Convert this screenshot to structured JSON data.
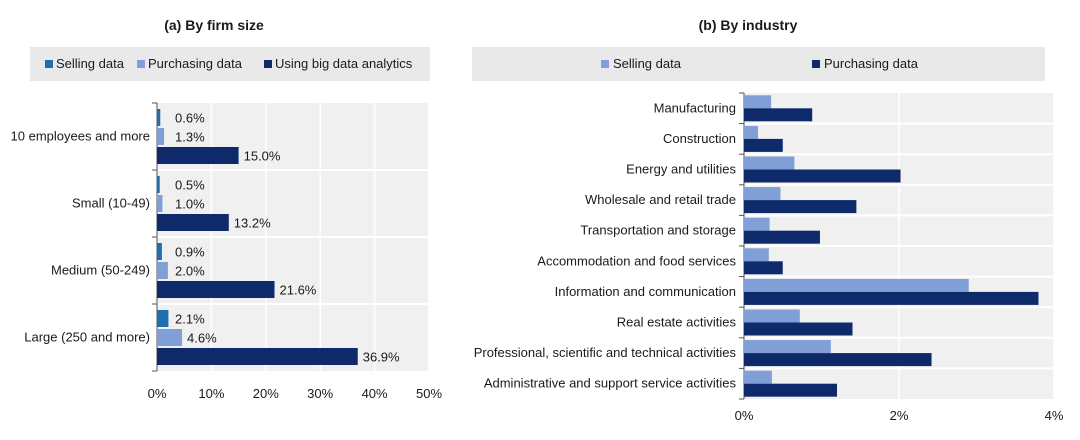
{
  "colors": {
    "selling_a": "#1f6fb0",
    "purchasing": "#7f9fd6",
    "dark_navy": "#0e2a6b",
    "panel_bg": "#f0f0f0",
    "legend_bg": "#e9e9e9",
    "grid": "#ffffff",
    "axis_text": "#1a1a1a"
  },
  "chart_data": [
    {
      "type": "bar",
      "orientation": "horizontal",
      "title": "(a) By firm size",
      "categories": [
        "10 employees and more",
        "Small  (10-49)",
        "Medium (50-249)",
        "Large (250 and more)"
      ],
      "series": [
        {
          "name": "Selling data",
          "values": [
            0.6,
            0.5,
            0.9,
            2.1
          ],
          "labels": [
            "0.6%",
            "0.5%",
            "0.9%",
            "2.1%"
          ],
          "color": "#1f6fb0"
        },
        {
          "name": "Purchasing data",
          "values": [
            1.3,
            1.0,
            2.0,
            4.6
          ],
          "labels": [
            "1.3%",
            "1.0%",
            "2.0%",
            "4.6%"
          ],
          "color": "#7f9fd6"
        },
        {
          "name": "Using big data analytics",
          "values": [
            15.0,
            13.2,
            21.6,
            36.9
          ],
          "labels": [
            "15.0%",
            "13.2%",
            "21.6%",
            "36.9%"
          ],
          "color": "#0e2a6b"
        }
      ],
      "xlim": [
        0,
        50
      ],
      "xticks": [
        0,
        10,
        20,
        30,
        40,
        50
      ],
      "xtick_labels": [
        "0%",
        "10%",
        "20%",
        "30%",
        "40%",
        "50%"
      ],
      "grid": true,
      "legend_position": "top"
    },
    {
      "type": "bar",
      "orientation": "horizontal",
      "title": "(b) By industry",
      "categories": [
        "Manufacturing",
        "Construction",
        "Energy and utilities",
        "Wholesale and retail trade",
        "Transportation and storage",
        "Accommodation and food services",
        "Information and communication",
        "Real estate activities",
        "Professional, scientific and technical activities",
        "Administrative and support service activities"
      ],
      "series": [
        {
          "name": "Selling data",
          "values": [
            0.35,
            0.18,
            0.65,
            0.47,
            0.33,
            0.32,
            2.9,
            0.72,
            1.12,
            0.36
          ],
          "color": "#7f9fd6"
        },
        {
          "name": "Purchasing data",
          "values": [
            0.88,
            0.5,
            2.02,
            1.45,
            0.98,
            0.5,
            3.8,
            1.4,
            2.42,
            1.2
          ],
          "color": "#0e2a6b"
        }
      ],
      "xlim": [
        0,
        4
      ],
      "xticks": [
        0,
        2,
        4
      ],
      "xtick_labels": [
        "0%",
        "2%",
        "4%"
      ],
      "grid": true,
      "legend_position": "top"
    }
  ]
}
